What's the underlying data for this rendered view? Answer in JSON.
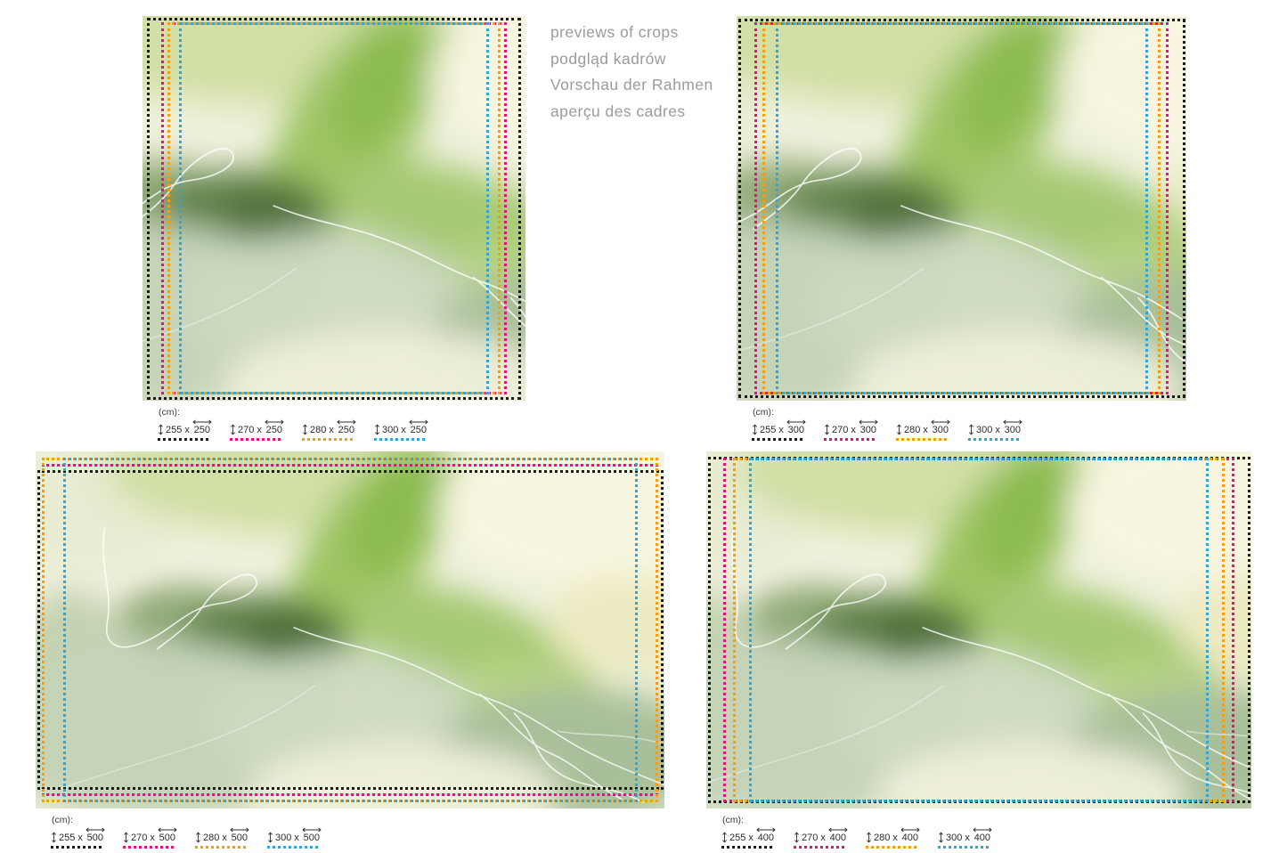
{
  "title": {
    "lines": [
      "previews of crops",
      "podgląd kadrów",
      "Vorschau der Rahmen",
      "aperçu des cadres"
    ],
    "color": "#9b9b9b"
  },
  "unit_label": "(cm):",
  "dimension_separator": "x",
  "frame_palette": {
    "black": "#1b1b1b",
    "magenta": "#e3127d",
    "orange": "#f59d0b",
    "blue": "#2fa6db"
  },
  "artwork": {
    "description": "abstract green watercolor wash with thin white contour lines",
    "palette": [
      "#f4f3e1",
      "#d2dfa6",
      "#9dc463",
      "#8bbb4f",
      "#5c7f45",
      "#486c35",
      "#c5d3b7",
      "#a9bf99",
      "#f7f5df",
      "#ffffff"
    ]
  },
  "panels": [
    {
      "name": "top-left",
      "crops": [
        {
          "height_cm": "255",
          "width_cm": "250",
          "color": "#1b1b1b",
          "color_name": "black"
        },
        {
          "height_cm": "270",
          "width_cm": "250",
          "color": "#e3127d",
          "color_name": "magenta"
        },
        {
          "height_cm": "280",
          "width_cm": "250",
          "color": "#f59d0b",
          "color_name": "orange"
        },
        {
          "height_cm": "300",
          "width_cm": "250",
          "color": "#2fa6db",
          "color_name": "blue"
        }
      ]
    },
    {
      "name": "top-right",
      "crops": [
        {
          "height_cm": "255",
          "width_cm": "300",
          "color": "#1b1b1b",
          "color_name": "black"
        },
        {
          "height_cm": "270",
          "width_cm": "300",
          "color": "#e3127d",
          "color_name": "magenta"
        },
        {
          "height_cm": "280",
          "width_cm": "300",
          "color": "#f59d0b",
          "color_name": "orange"
        },
        {
          "height_cm": "300",
          "width_cm": "300",
          "color": "#2fa6db",
          "color_name": "blue"
        }
      ]
    },
    {
      "name": "bottom-left",
      "crops": [
        {
          "height_cm": "255",
          "width_cm": "500",
          "color": "#1b1b1b",
          "color_name": "black"
        },
        {
          "height_cm": "270",
          "width_cm": "500",
          "color": "#e3127d",
          "color_name": "magenta"
        },
        {
          "height_cm": "280",
          "width_cm": "500",
          "color": "#f59d0b",
          "color_name": "orange"
        },
        {
          "height_cm": "300",
          "width_cm": "500",
          "color": "#2fa6db",
          "color_name": "blue"
        }
      ]
    },
    {
      "name": "bottom-right",
      "crops": [
        {
          "height_cm": "255",
          "width_cm": "400",
          "color": "#1b1b1b",
          "color_name": "black"
        },
        {
          "height_cm": "270",
          "width_cm": "400",
          "color": "#e3127d",
          "color_name": "magenta"
        },
        {
          "height_cm": "280",
          "width_cm": "400",
          "color": "#f59d0b",
          "color_name": "orange"
        },
        {
          "height_cm": "300",
          "width_cm": "400",
          "color": "#2fa6db",
          "color_name": "blue"
        }
      ]
    }
  ]
}
